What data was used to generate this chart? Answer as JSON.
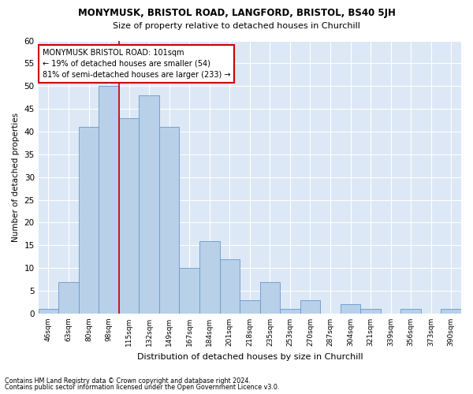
{
  "title": "MONYMUSK, BRISTOL ROAD, LANGFORD, BRISTOL, BS40 5JH",
  "subtitle": "Size of property relative to detached houses in Churchill",
  "xlabel": "Distribution of detached houses by size in Churchill",
  "ylabel": "Number of detached properties",
  "categories": [
    "46sqm",
    "63sqm",
    "80sqm",
    "98sqm",
    "115sqm",
    "132sqm",
    "149sqm",
    "167sqm",
    "184sqm",
    "201sqm",
    "218sqm",
    "235sqm",
    "253sqm",
    "270sqm",
    "287sqm",
    "304sqm",
    "321sqm",
    "339sqm",
    "356sqm",
    "373sqm",
    "390sqm"
  ],
  "values": [
    1,
    7,
    41,
    50,
    43,
    48,
    41,
    10,
    16,
    12,
    3,
    7,
    1,
    3,
    0,
    2,
    1,
    0,
    1,
    0,
    1
  ],
  "bar_color": "#b8d0e8",
  "bar_edge_color": "#6699cc",
  "background_color": "#dce8f5",
  "grid_color": "#ffffff",
  "red_line_index": 3,
  "red_line_color": "#cc0000",
  "annotation_text": "MONYMUSK BRISTOL ROAD: 101sqm\n← 19% of detached houses are smaller (54)\n81% of semi-detached houses are larger (233) →",
  "annotation_box_color": "#ffffff",
  "annotation_box_edge": "#cc0000",
  "ylim": [
    0,
    60
  ],
  "yticks": [
    0,
    5,
    10,
    15,
    20,
    25,
    30,
    35,
    40,
    45,
    50,
    55,
    60
  ],
  "footer1": "Contains HM Land Registry data © Crown copyright and database right 2024.",
  "footer2": "Contains public sector information licensed under the Open Government Licence v3.0.",
  "fig_bg": "#ffffff"
}
